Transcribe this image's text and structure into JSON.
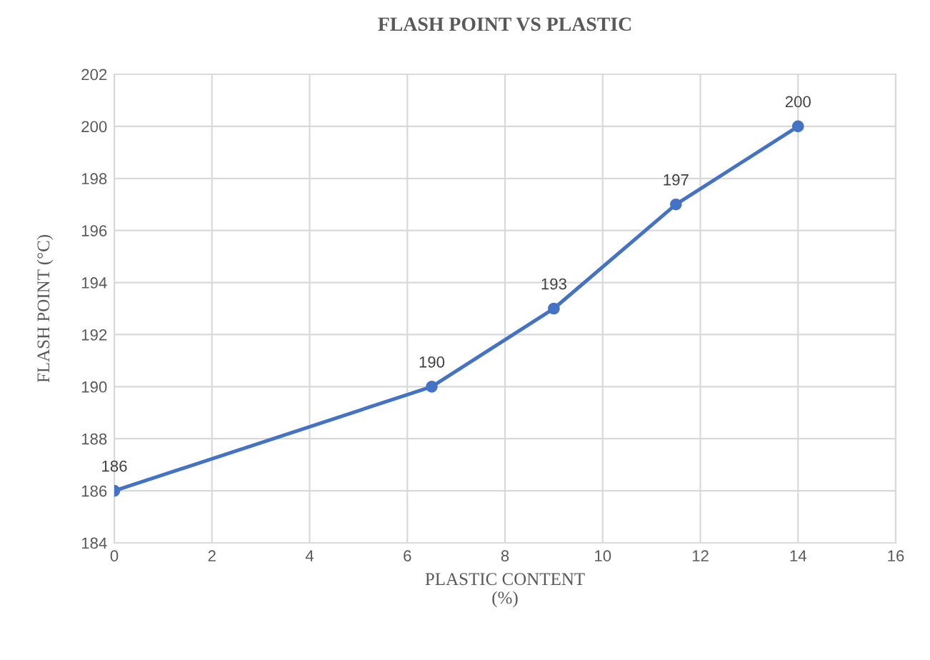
{
  "chart_data": {
    "type": "line",
    "title": "FLASH POINT VS PLASTIC",
    "xlabel": "PLASTIC CONTENT\n(%)",
    "ylabel": "FLASH POINT (°C)",
    "x": [
      0,
      6.5,
      9,
      11.5,
      14
    ],
    "series": [
      {
        "color": "#4472c4",
        "values": [
          186,
          190,
          193,
          197,
          200
        ]
      }
    ],
    "xlim": [
      0,
      16
    ],
    "xticks": [
      0,
      2,
      4,
      6,
      8,
      10,
      12,
      14,
      16
    ],
    "ylim": [
      184,
      202
    ],
    "yticks": [
      184,
      186,
      188,
      190,
      192,
      194,
      196,
      198,
      200,
      202
    ],
    "grid": true,
    "marker": "circle",
    "line_style": "solid",
    "data_labels": true
  }
}
